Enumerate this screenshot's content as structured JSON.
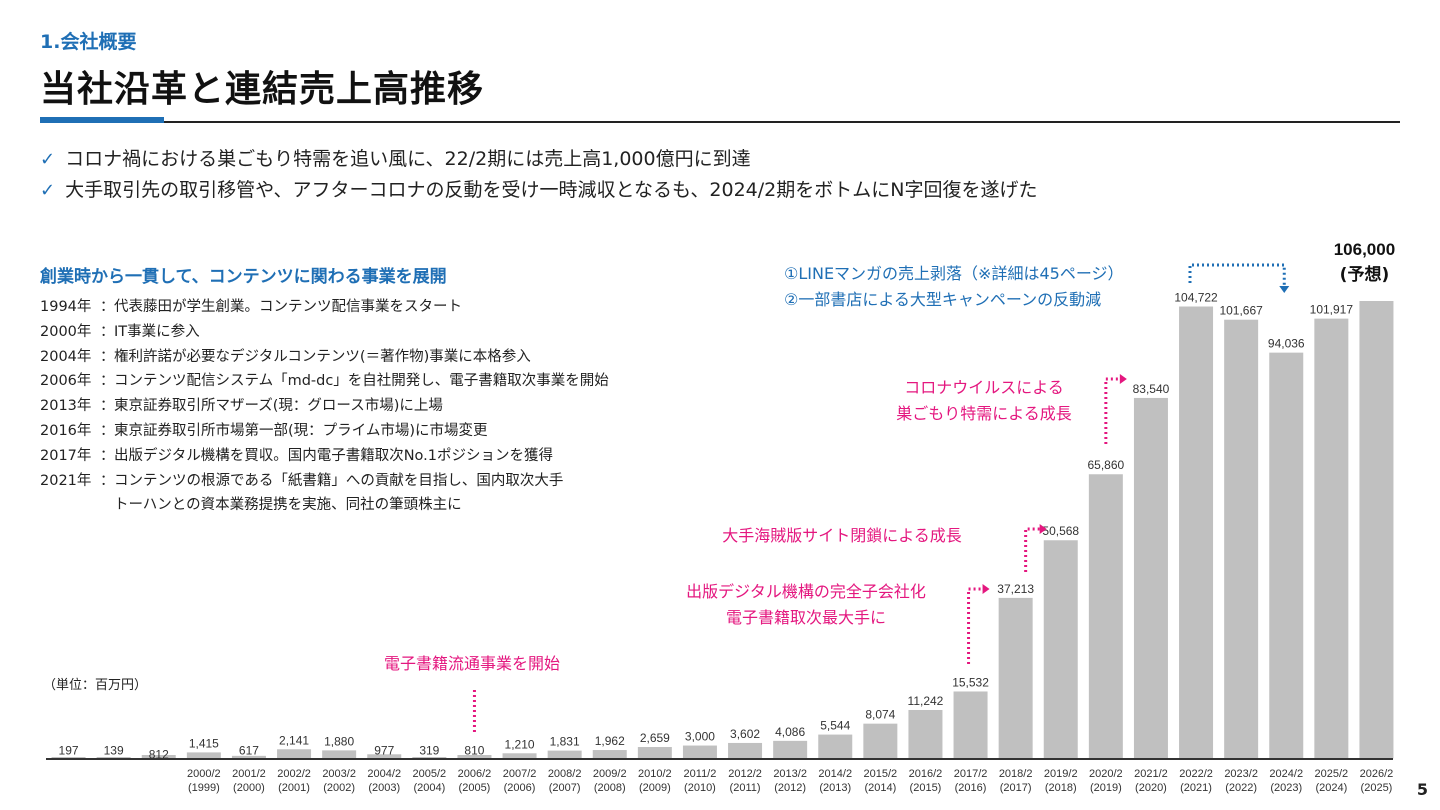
{
  "header": {
    "section": "1.会社概要",
    "title": "当社沿革と連結売上高推移"
  },
  "bullets": [
    "コロナ禍における巣ごもり特需を追い風に、22/2期には売上高1,000億円に到達",
    "大手取引先の取引移管や、アフターコロナの反動を受け一時減収となるも、2024/2期をボトムにN字回復を遂げた"
  ],
  "bullet_mark": "✓",
  "history": {
    "heading": "創業時から一貫して、コンテンツに関わる事業を展開",
    "items": [
      {
        "year": "1994年",
        "text": "代表藤田が学生創業。コンテンツ配信事業をスタート"
      },
      {
        "year": "2000年",
        "text": "IT事業に参入"
      },
      {
        "year": "2004年",
        "text": "権利許諾が必要なデジタルコンテンツ(＝著作物)事業に本格参入"
      },
      {
        "year": "2006年",
        "text": "コンテンツ配信システム「md-dc」を自社開発し、電子書籍取次事業を開始"
      },
      {
        "year": "2013年",
        "text": "東京証券取引所マザーズ(現：グロース市場)に上場"
      },
      {
        "year": "2016年",
        "text": "東京証券取引所市場第一部(現：プライム市場)に市場変更"
      },
      {
        "year": "2017年",
        "text": "出版デジタル機構を買収。国内電子書籍取次No.1ポジションを獲得"
      },
      {
        "year": "2021年",
        "text": "コンテンツの根源である「紙書籍」への貢献を目指し、国内取次大手"
      }
    ],
    "continuation": "トーハンとの資本業務提携を実施、同社の筆頭株主に",
    "colon": "："
  },
  "unit_label": "（単位：百万円）",
  "page_number": "5",
  "colors": {
    "accent": "#1f6fb5",
    "bar": "#c0c0c0",
    "annotation": "#e4177f",
    "text": "#222222"
  },
  "chart_data": {
    "type": "bar",
    "title": "",
    "xlabel": "",
    "ylabel": "",
    "ylim": [
      0,
      110000
    ],
    "categories": [
      "",
      "",
      "",
      "2000/2\n(1999)",
      "2001/2\n(2000)",
      "2002/2\n(2001)",
      "2003/2\n(2002)",
      "2004/2\n(2003)",
      "2005/2\n(2004)",
      "2006/2\n(2005)",
      "2007/2\n(2006)",
      "2008/2\n(2007)",
      "2009/2\n(2008)",
      "2010/2\n(2009)",
      "2011/2\n(2010)",
      "2012/2\n(2011)",
      "2013/2\n(2012)",
      "2014/2\n(2013)",
      "2015/2\n(2014)",
      "2016/2\n(2015)",
      "2017/2\n(2016)",
      "2018/2\n(2017)",
      "2019/2\n(2018)",
      "2020/2\n(2019)",
      "2021/2\n(2020)",
      "2022/2\n(2021)",
      "2023/2\n(2022)",
      "2024/2\n(2023)",
      "2025/2\n(2024)",
      "2026/2\n(2025)"
    ],
    "values": [
      197,
      139,
      812,
      1415,
      617,
      2141,
      1880,
      977,
      319,
      810,
      1210,
      1831,
      1962,
      2659,
      3000,
      3602,
      4086,
      5544,
      8074,
      11242,
      15532,
      37213,
      50568,
      65860,
      83540,
      104722,
      101667,
      94036,
      101917,
      106000
    ],
    "value_labels": [
      "197",
      "139",
      "812",
      "1,415",
      "617",
      "2,141",
      "1,880",
      "977",
      "319",
      "810",
      "1,210",
      "1,831",
      "1,962",
      "2,659",
      "3,000",
      "3,602",
      "4,086",
      "5,544",
      "8,074",
      "11,242",
      "15,532",
      "37,213",
      "50,568",
      "65,860",
      "83,540",
      "104,722",
      "101,667",
      "94,036",
      "101,917",
      "106,000"
    ],
    "forecast_note": "(予想)",
    "annotations": [
      {
        "lines": [
          "電子書籍流通事業を開始"
        ],
        "at": "2006/2"
      },
      {
        "lines": [
          "出版デジタル機構の完全子会社化",
          "電子書籍取次最大手に"
        ],
        "at": "2017/2"
      },
      {
        "lines": [
          "大手海賊版サイト閉鎖による成長"
        ],
        "at": "2018/2"
      },
      {
        "lines": [
          "コロナウイルスによる",
          "巣ごもり特需による成長"
        ],
        "at": "2020/2"
      },
      {
        "lines": [
          "①LINEマンガの売上剥落（※詳細は45ページ）",
          "②一部書店による大型キャンペーンの反動減"
        ],
        "at": "2024/2"
      }
    ]
  }
}
